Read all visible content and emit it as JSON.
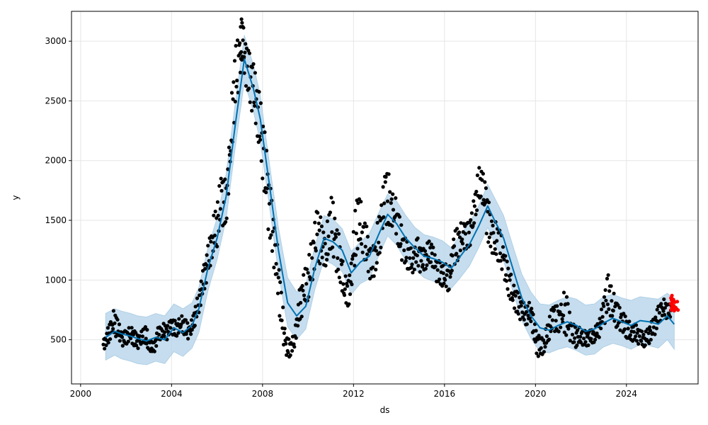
{
  "chart_data": {
    "type": "line",
    "title": "",
    "xlabel": "ds",
    "ylabel": "y",
    "xlim": [
      1999.6,
      2027.15
    ],
    "ylim": [
      130,
      3250
    ],
    "grid": true,
    "x_ticks": [
      2000,
      2004,
      2008,
      2012,
      2016,
      2020,
      2024
    ],
    "x_tick_labels": [
      "2000",
      "2004",
      "2008",
      "2012",
      "2016",
      "2020",
      "2024"
    ],
    "y_ticks": [
      500,
      1000,
      1500,
      2000,
      2500,
      3000
    ],
    "y_tick_labels": [
      "500",
      "1000",
      "1500",
      "2000",
      "2500",
      "3000"
    ],
    "colors": {
      "actual": "#000000",
      "forecast": "#0072B2",
      "interval": "#b7d4ea",
      "recent": "#ff0000",
      "grid": "#e6e6e6"
    },
    "series": [
      {
        "kind": "forecast",
        "x": [
          2001.1,
          2001.5,
          2001.8,
          2002.2,
          2002.5,
          2002.9,
          2003.3,
          2003.7,
          2004.1,
          2004.5,
          2004.9,
          2005.2,
          2005.6,
          2006.0,
          2006.4,
          2006.8,
          2007.2,
          2007.6,
          2007.9,
          2008.3,
          2008.7,
          2009.1,
          2009.5,
          2009.9,
          2010.3,
          2010.7,
          2011.1,
          2011.5,
          2011.9,
          2012.3,
          2012.7,
          2013.1,
          2013.5,
          2013.9,
          2014.3,
          2014.7,
          2015.1,
          2015.5,
          2015.9,
          2016.3,
          2016.7,
          2017.1,
          2017.5,
          2017.9,
          2018.2,
          2018.6,
          2019.0,
          2019.4,
          2019.8,
          2020.2,
          2020.6,
          2021.0,
          2021.4,
          2021.8,
          2022.2,
          2022.6,
          2023.0,
          2023.4,
          2023.8,
          2024.2,
          2024.6,
          2025.0,
          2025.4,
          2025.8,
          2026.1
        ],
        "y": [
          520,
          570,
          550,
          530,
          510,
          490,
          520,
          500,
          600,
          560,
          620,
          760,
          1100,
          1350,
          1700,
          2300,
          2850,
          2600,
          2350,
          1800,
          1250,
          810,
          700,
          780,
          1100,
          1350,
          1320,
          1250,
          1060,
          1150,
          1200,
          1380,
          1550,
          1470,
          1350,
          1270,
          1200,
          1180,
          1150,
          1100,
          1200,
          1300,
          1450,
          1620,
          1500,
          1350,
          1100,
          850,
          700,
          600,
          580,
          620,
          650,
          620,
          570,
          590,
          640,
          680,
          650,
          620,
          660,
          650,
          630,
          700,
          630
        ]
      },
      {
        "kind": "interval",
        "x": [
          2001.1,
          2001.5,
          2001.8,
          2002.2,
          2002.5,
          2002.9,
          2003.3,
          2003.7,
          2004.1,
          2004.5,
          2004.9,
          2005.2,
          2005.6,
          2006.0,
          2006.4,
          2006.8,
          2007.2,
          2007.6,
          2007.9,
          2008.3,
          2008.7,
          2009.1,
          2009.5,
          2009.9,
          2010.3,
          2010.7,
          2011.1,
          2011.5,
          2011.9,
          2012.3,
          2012.7,
          2013.1,
          2013.5,
          2013.9,
          2014.3,
          2014.7,
          2015.1,
          2015.5,
          2015.9,
          2016.3,
          2016.7,
          2017.1,
          2017.5,
          2017.9,
          2018.2,
          2018.6,
          2019.0,
          2019.4,
          2019.8,
          2020.2,
          2020.6,
          2021.0,
          2021.4,
          2021.8,
          2022.2,
          2022.6,
          2023.0,
          2023.4,
          2023.8,
          2024.2,
          2024.6,
          2025.0,
          2025.4,
          2025.8,
          2026.1
        ],
        "upper": [
          720,
          760,
          740,
          720,
          700,
          690,
          720,
          700,
          800,
          760,
          810,
          940,
          1270,
          1520,
          1890,
          2480,
          3050,
          2800,
          2550,
          1980,
          1440,
          1020,
          900,
          960,
          1280,
          1540,
          1510,
          1430,
          1240,
          1320,
          1390,
          1560,
          1720,
          1660,
          1540,
          1440,
          1380,
          1360,
          1330,
          1270,
          1380,
          1480,
          1620,
          1800,
          1690,
          1540,
          1290,
          1050,
          900,
          800,
          790,
          830,
          860,
          840,
          790,
          800,
          860,
          880,
          850,
          830,
          860,
          850,
          840,
          890,
          840
        ],
        "lower": [
          330,
          370,
          340,
          320,
          300,
          290,
          320,
          300,
          400,
          360,
          430,
          560,
          910,
          1170,
          1510,
          2110,
          2660,
          2410,
          2160,
          1620,
          1060,
          610,
          500,
          590,
          920,
          1170,
          1130,
          1070,
          880,
          970,
          1010,
          1200,
          1370,
          1290,
          1160,
          1090,
          1020,
          990,
          970,
          930,
          1020,
          1120,
          1270,
          1440,
          1310,
          1160,
          910,
          660,
          510,
          400,
          390,
          420,
          440,
          410,
          370,
          380,
          440,
          470,
          450,
          420,
          460,
          450,
          430,
          500,
          420
        ]
      },
      {
        "kind": "actual",
        "x": [
          2001.0,
          2001.2,
          2001.4,
          2001.6,
          2001.8,
          2002.0,
          2002.2,
          2002.4,
          2002.6,
          2002.8,
          2003.0,
          2003.2,
          2003.4,
          2003.6,
          2003.8,
          2004.0,
          2004.2,
          2004.4,
          2004.6,
          2004.8,
          2005.0,
          2005.2,
          2005.4,
          2005.6,
          2005.8,
          2006.0,
          2006.2,
          2006.4,
          2006.6,
          2006.8,
          2007.0,
          2007.1,
          2007.2,
          2007.4,
          2007.6,
          2007.8,
          2008.0,
          2008.2,
          2008.4,
          2008.6,
          2008.8,
          2009.0,
          2009.2,
          2009.4,
          2009.6,
          2009.8,
          2010.0,
          2010.2,
          2010.4,
          2010.6,
          2010.8,
          2011.0,
          2011.2,
          2011.4,
          2011.6,
          2011.8,
          2012.0,
          2012.2,
          2012.4,
          2012.6,
          2012.8,
          2013.0,
          2013.2,
          2013.4,
          2013.6,
          2013.8,
          2014.0,
          2014.2,
          2014.4,
          2014.6,
          2014.8,
          2015.0,
          2015.2,
          2015.4,
          2015.6,
          2015.8,
          2016.0,
          2016.2,
          2016.4,
          2016.6,
          2016.8,
          2017.0,
          2017.2,
          2017.4,
          2017.6,
          2017.8,
          2018.0,
          2018.2,
          2018.4,
          2018.6,
          2018.8,
          2019.0,
          2019.2,
          2019.4,
          2019.6,
          2019.8,
          2020.0,
          2020.2,
          2020.4,
          2020.6,
          2020.8,
          2021.0,
          2021.2,
          2021.4,
          2021.6,
          2021.8,
          2022.0,
          2022.2,
          2022.4,
          2022.6,
          2022.8,
          2023.0,
          2023.2,
          2023.4,
          2023.6,
          2023.8,
          2024.0,
          2024.2,
          2024.4,
          2024.6,
          2024.8,
          2025.0,
          2025.2,
          2025.4,
          2025.6,
          2025.8
        ],
        "y": [
          460,
          520,
          650,
          620,
          500,
          520,
          560,
          500,
          480,
          560,
          470,
          420,
          540,
          580,
          560,
          620,
          580,
          650,
          600,
          560,
          680,
          820,
          1000,
          1150,
          1350,
          1480,
          1700,
          1600,
          2200,
          2700,
          2850,
          3050,
          2900,
          2700,
          2600,
          2400,
          2150,
          1750,
          1450,
          1200,
          800,
          450,
          420,
          500,
          750,
          900,
          1000,
          1200,
          1400,
          1300,
          1250,
          1500,
          1300,
          1150,
          950,
          880,
          1200,
          1550,
          1400,
          1250,
          1100,
          1250,
          1450,
          1750,
          1600,
          1600,
          1400,
          1250,
          1200,
          1150,
          1250,
          1150,
          1200,
          1250,
          1100,
          1050,
          1050,
          1000,
          1250,
          1300,
          1400,
          1350,
          1450,
          1700,
          1850,
          1650,
          1400,
          1350,
          1300,
          1150,
          1000,
          900,
          800,
          750,
          700,
          750,
          500,
          430,
          480,
          600,
          700,
          650,
          750,
          700,
          550,
          520,
          540,
          500,
          520,
          540,
          600,
          750,
          900,
          800,
          700,
          650,
          600,
          560,
          560,
          520,
          500,
          550,
          600,
          700,
          780,
          740
        ],
        "spread": [
          50,
          80,
          100,
          70,
          60,
          60,
          70,
          60,
          60,
          80,
          50,
          50,
          60,
          60,
          60,
          70,
          60,
          70,
          70,
          60,
          80,
          100,
          120,
          140,
          160,
          200,
          220,
          180,
          260,
          250,
          200,
          160,
          200,
          220,
          220,
          250,
          300,
          250,
          220,
          200,
          150,
          80,
          60,
          80,
          150,
          160,
          180,
          200,
          220,
          150,
          180,
          250,
          200,
          150,
          120,
          120,
          250,
          200,
          180,
          150,
          150,
          180,
          180,
          250,
          150,
          150,
          150,
          120,
          100,
          100,
          120,
          100,
          100,
          100,
          100,
          100,
          100,
          90,
          150,
          120,
          120,
          120,
          120,
          150,
          150,
          200,
          150,
          150,
          150,
          120,
          120,
          100,
          100,
          80,
          80,
          100,
          100,
          80,
          80,
          100,
          120,
          100,
          180,
          120,
          90,
          70,
          70,
          60,
          60,
          60,
          80,
          150,
          150,
          120,
          100,
          90,
          80,
          70,
          70,
          60,
          60,
          80,
          80,
          80,
          70,
          60
        ]
      },
      {
        "kind": "recent",
        "x": [
          2025.95,
          2026.0,
          2026.05,
          2026.1
        ],
        "y": [
          800,
          830,
          790,
          780
        ],
        "spread": [
          60,
          40,
          50,
          40
        ]
      }
    ]
  }
}
